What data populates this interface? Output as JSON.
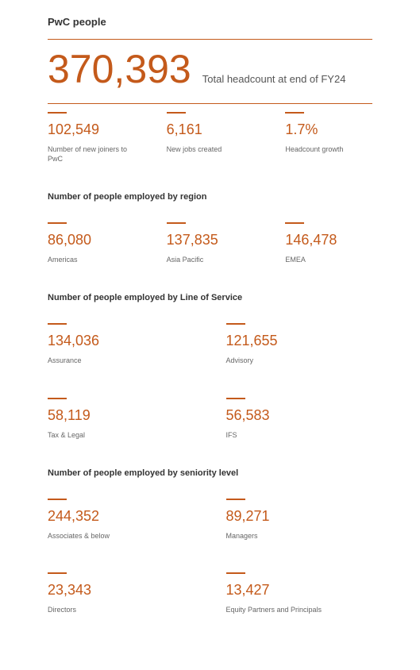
{
  "colors": {
    "accent": "#c45a1b",
    "rule": "#c45a1b",
    "text_dark": "#333333",
    "text_muted": "#666666",
    "background": "#ffffff"
  },
  "title": "PwC people",
  "hero": {
    "value": "370,393",
    "description": "Total headcount at end of FY24"
  },
  "top_stats": [
    {
      "value": "102,549",
      "label": "Number of new joiners to PwC"
    },
    {
      "value": "6,161",
      "label": "New jobs created"
    },
    {
      "value": "1.7%",
      "label": "Headcount growth"
    }
  ],
  "sections": [
    {
      "heading": "Number of people employed by region",
      "columns": 3,
      "stats": [
        {
          "value": "86,080",
          "label": "Americas"
        },
        {
          "value": "137,835",
          "label": "Asia Pacific"
        },
        {
          "value": "146,478",
          "label": "EMEA"
        }
      ]
    },
    {
      "heading": "Number of people employed by Line of Service",
      "columns": 2,
      "stats": [
        {
          "value": "134,036",
          "label": "Assurance"
        },
        {
          "value": "121,655",
          "label": "Advisory"
        },
        {
          "value": "58,119",
          "label": "Tax & Legal"
        },
        {
          "value": "56,583",
          "label": "IFS"
        }
      ]
    },
    {
      "heading": "Number of people employed by seniority level",
      "columns": 2,
      "stats": [
        {
          "value": "244,352",
          "label": "Associates & below"
        },
        {
          "value": "89,271",
          "label": "Managers"
        },
        {
          "value": "23,343",
          "label": "Directors"
        },
        {
          "value": "13,427",
          "label": "Equity Partners and Principals"
        }
      ]
    }
  ]
}
